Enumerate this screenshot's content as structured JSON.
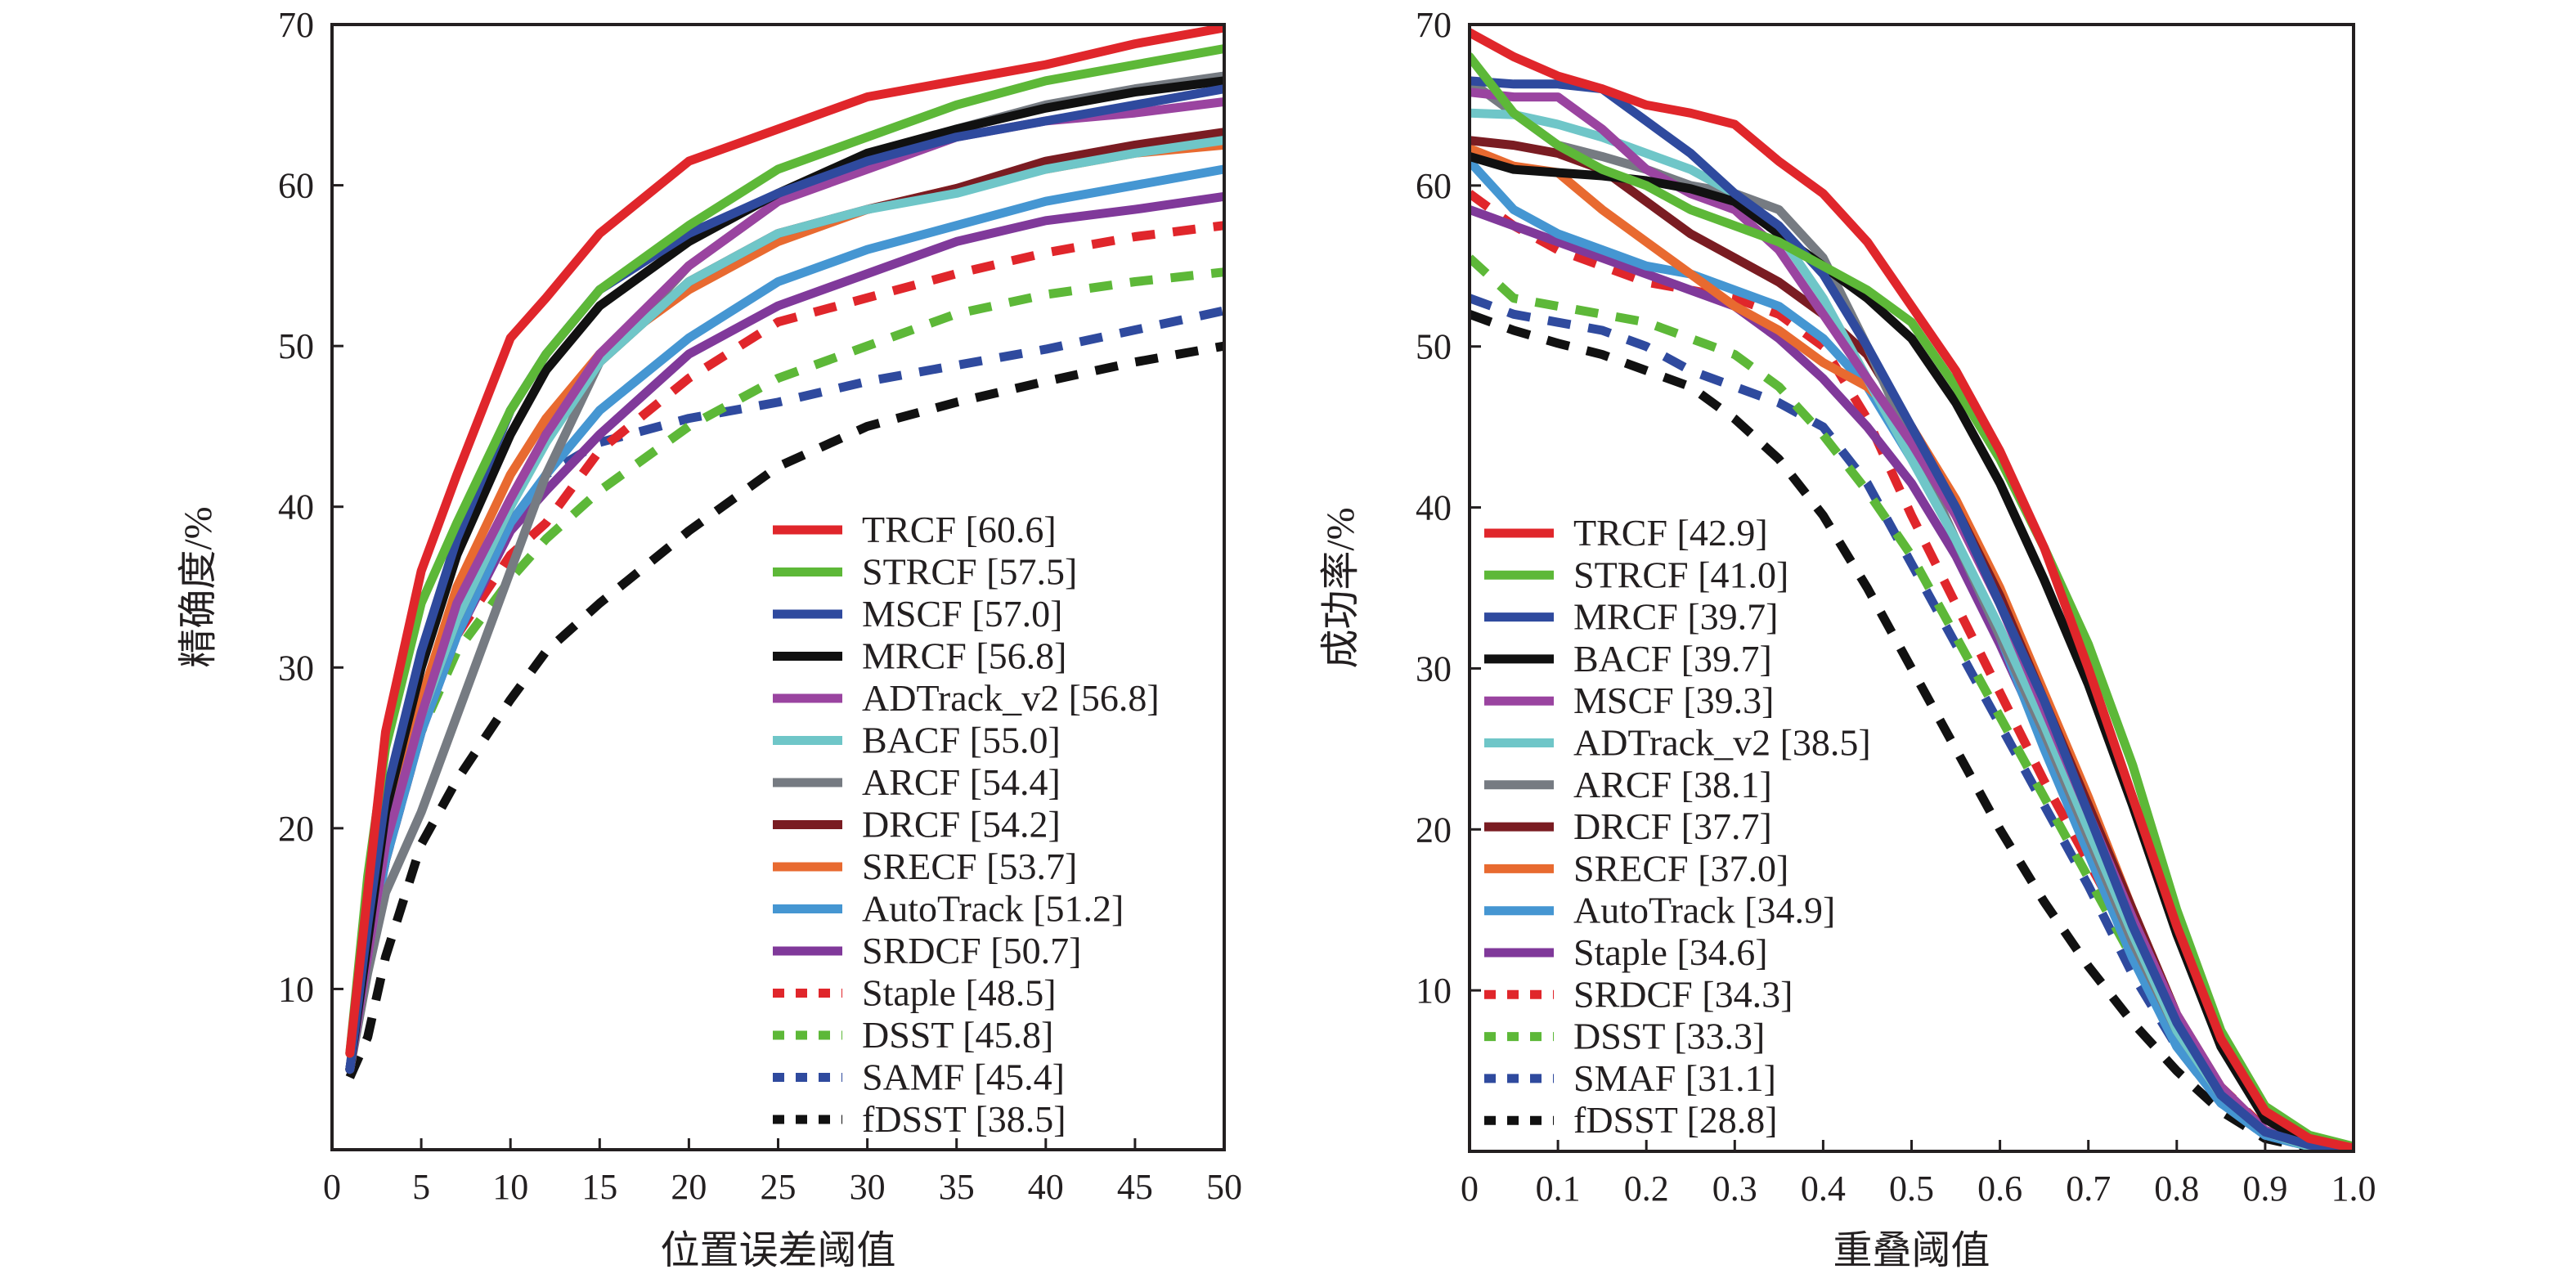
{
  "chart_data": [
    {
      "type": "line",
      "title": "",
      "xlabel": "位置误差阈值",
      "ylabel": "精确度/%",
      "xlim": [
        0,
        50
      ],
      "ylim": [
        0,
        70
      ],
      "xticks": [
        0,
        5,
        10,
        15,
        20,
        25,
        30,
        35,
        40,
        45,
        50
      ],
      "xtick_labels": [
        "0",
        "5",
        "10",
        "15",
        "20",
        "25",
        "30",
        "35",
        "40",
        "45",
        "50"
      ],
      "yticks": [
        10,
        20,
        30,
        40,
        50,
        60,
        70
      ],
      "ytick_labels": [
        "10",
        "20",
        "30",
        "40",
        "50",
        "60",
        "70"
      ],
      "grid": false,
      "legend_position": "bottom-right",
      "x": [
        1,
        2,
        3,
        5,
        7,
        10,
        12,
        15,
        20,
        25,
        30,
        35,
        40,
        45,
        50
      ],
      "series": [
        {
          "name": "TRCF [60.6]",
          "color": "#e0262b",
          "dash": "solid",
          "values": [
            6,
            16,
            26,
            36,
            42,
            50.5,
            53,
            57,
            61.5,
            63.5,
            65.5,
            66.5,
            67.5,
            68.8,
            69.8
          ]
        },
        {
          "name": "STRCF [57.5]",
          "color": "#5db838",
          "dash": "solid",
          "values": [
            6,
            17,
            25,
            34,
            39,
            46,
            49.5,
            53.5,
            57.5,
            61,
            63,
            65,
            66.5,
            67.5,
            68.5
          ]
        },
        {
          "name": "MSCF [57.0]",
          "color": "#2f4a9e",
          "dash": "solid",
          "values": [
            5,
            14,
            22,
            31,
            38,
            46,
            49.5,
            53.5,
            57,
            59.5,
            61.5,
            63,
            64,
            65,
            66
          ]
        },
        {
          "name": "MRCF [56.8]",
          "color": "#111111",
          "dash": "solid",
          "values": [
            5,
            13,
            21,
            30,
            37,
            44.5,
            48.5,
            52.5,
            56.5,
            59.5,
            62,
            63.5,
            64.8,
            65.8,
            66.5
          ]
        },
        {
          "name": "ADTrack_v2 [56.8]",
          "color": "#9a44a0",
          "dash": "solid",
          "values": [
            5,
            12,
            19,
            27,
            34,
            40.5,
            44.5,
            49.5,
            55,
            59,
            61,
            63,
            64,
            64.5,
            65.2
          ]
        },
        {
          "name": "BACF [55.0]",
          "color": "#6fc6c8",
          "dash": "solid",
          "values": [
            5,
            12,
            19,
            27,
            33,
            40,
            44,
            49,
            54,
            57,
            58.5,
            59.5,
            61,
            62,
            62.8
          ]
        },
        {
          "name": "ARCF [54.4]",
          "color": "#767b82",
          "dash": "solid",
          "values": [
            5,
            11,
            16,
            21,
            27,
            36,
            42,
            49,
            55,
            59,
            61.5,
            63.5,
            65,
            66,
            66.8
          ]
        },
        {
          "name": "DRCF [54.2]",
          "color": "#7a1c22",
          "dash": "solid",
          "values": [
            5,
            12,
            19,
            27,
            33,
            40,
            44.5,
            49,
            54,
            57,
            58.5,
            59.8,
            61.5,
            62.5,
            63.3
          ]
        },
        {
          "name": "SRECF [53.7]",
          "color": "#e86a30",
          "dash": "solid",
          "values": [
            5,
            12,
            20,
            28,
            35,
            42,
            45.5,
            49.5,
            53.5,
            56.5,
            58.5,
            59.8,
            61,
            62,
            62.5
          ]
        },
        {
          "name": "AutoTrack [51.2]",
          "color": "#4596d2",
          "dash": "solid",
          "values": [
            5,
            12,
            18,
            26,
            32,
            39,
            42,
            46,
            50.5,
            54,
            56,
            57.5,
            59,
            60,
            61
          ]
        },
        {
          "name": "SRDCF [50.7]",
          "color": "#80399a",
          "dash": "solid",
          "values": [
            5,
            12,
            18,
            26,
            32,
            38.5,
            41,
            44.5,
            49.5,
            52.5,
            54.5,
            56.5,
            57.8,
            58.5,
            59.3
          ]
        },
        {
          "name": "Staple [48.5]",
          "color": "#e0262b",
          "dash": "dashed",
          "values": [
            5,
            12,
            18,
            26,
            32,
            37,
            39,
            43.5,
            48,
            51.5,
            53,
            54.5,
            55.8,
            56.8,
            57.5
          ]
        },
        {
          "name": "DSST [45.8]",
          "color": "#5db838",
          "dash": "dashed",
          "values": [
            5,
            12,
            18,
            26,
            31,
            35.5,
            38,
            41,
            45,
            48,
            50,
            52,
            53.2,
            54,
            54.6
          ]
        },
        {
          "name": "SAMF [45.4]",
          "color": "#2f4a9e",
          "dash": "dashed",
          "values": [
            5,
            12,
            18,
            26,
            32,
            38.5,
            42,
            44,
            45.5,
            46.5,
            47.8,
            48.8,
            49.8,
            51,
            52.2
          ]
        },
        {
          "name": "fDSST [38.5]",
          "color": "#111111",
          "dash": "dashed",
          "values": [
            4.5,
            7,
            12,
            19,
            23,
            28,
            31,
            34,
            38.5,
            42.5,
            45,
            46.5,
            47.8,
            49,
            50
          ]
        }
      ]
    },
    {
      "type": "line",
      "title": "",
      "xlabel": "重叠阈值",
      "ylabel": "成功率/%",
      "xlim": [
        0,
        1.0
      ],
      "ylim": [
        0,
        70
      ],
      "xticks": [
        0,
        0.1,
        0.2,
        0.3,
        0.4,
        0.5,
        0.6,
        0.7,
        0.8,
        0.9,
        1.0
      ],
      "xtick_labels": [
        "0",
        "0.1",
        "0.2",
        "0.3",
        "0.4",
        "0.5",
        "0.6",
        "0.7",
        "0.8",
        "0.9",
        "1.0"
      ],
      "yticks": [
        10,
        20,
        30,
        40,
        50,
        60,
        70
      ],
      "ytick_labels": [
        "10",
        "20",
        "30",
        "40",
        "50",
        "60",
        "70"
      ],
      "grid": false,
      "legend_position": "bottom-left",
      "x": [
        0,
        0.05,
        0.1,
        0.15,
        0.2,
        0.25,
        0.3,
        0.35,
        0.4,
        0.45,
        0.5,
        0.55,
        0.6,
        0.65,
        0.7,
        0.75,
        0.8,
        0.85,
        0.9,
        0.95,
        1.0
      ],
      "series": [
        {
          "name": "TRCF [42.9]",
          "color": "#e0262b",
          "dash": "solid",
          "values": [
            69.5,
            68,
            66.8,
            66,
            65,
            64.5,
            63.8,
            61.5,
            59.5,
            56.5,
            52.5,
            48.5,
            43.5,
            37.5,
            30,
            22,
            14,
            7,
            2.5,
            0.8,
            0.2
          ]
        },
        {
          "name": "STRCF [41.0]",
          "color": "#5db838",
          "dash": "solid",
          "values": [
            68,
            64.5,
            62.5,
            61,
            60,
            58.5,
            57.5,
            56.5,
            55,
            53.5,
            51.5,
            47.5,
            43,
            37.5,
            31.5,
            24,
            15,
            7.5,
            2.8,
            1,
            0.3
          ]
        },
        {
          "name": "MRCF [39.7]",
          "color": "#2f4a9e",
          "dash": "solid",
          "values": [
            66.5,
            66.3,
            66.3,
            66,
            64,
            62,
            59.5,
            57.5,
            54.5,
            50,
            45,
            40,
            34,
            28,
            21,
            14,
            8,
            3.5,
            1.2,
            0.4,
            0.1
          ]
        },
        {
          "name": "BACF [39.7]",
          "color": "#111111",
          "dash": "solid",
          "values": [
            61.8,
            61,
            60.8,
            60.6,
            60.3,
            59.8,
            59,
            57,
            55,
            53,
            50.5,
            46.5,
            41.5,
            35.5,
            29,
            21.5,
            13.5,
            6.5,
            2,
            0.5,
            0.1
          ]
        },
        {
          "name": "MSCF [39.3]",
          "color": "#9a44a0",
          "dash": "solid",
          "values": [
            65.8,
            65.5,
            65.5,
            63.5,
            61,
            59.5,
            58.5,
            56,
            52,
            48,
            44,
            39.5,
            34,
            27.5,
            21,
            14.5,
            8.5,
            4,
            1.3,
            0.4,
            0.1
          ]
        },
        {
          "name": "ADTrack_v2 [38.5]",
          "color": "#6fc6c8",
          "dash": "solid",
          "values": [
            64.5,
            64.4,
            63.8,
            63,
            62,
            61,
            59.5,
            57,
            53,
            48,
            43,
            38,
            32.5,
            26.5,
            20,
            13.5,
            7.5,
            3.5,
            1.2,
            0.3,
            0.1
          ]
        },
        {
          "name": "ARCF [38.1]",
          "color": "#767b82",
          "dash": "solid",
          "values": [
            66.5,
            64.5,
            62.5,
            61.8,
            61,
            60,
            59.5,
            58.5,
            55.5,
            50,
            44,
            38,
            32,
            26,
            19.5,
            13,
            7.5,
            3.5,
            1.2,
            0.3,
            0.1
          ]
        },
        {
          "name": "DRCF [37.7]",
          "color": "#7a1c22",
          "dash": "solid",
          "values": [
            62.8,
            62.5,
            62,
            61,
            59,
            57,
            55.5,
            54,
            52,
            49.5,
            45,
            40,
            34.5,
            28,
            21.5,
            15,
            8.5,
            4,
            1.3,
            0.4,
            0.1
          ]
        },
        {
          "name": "SRECF [37.0]",
          "color": "#e86a30",
          "dash": "solid",
          "values": [
            62.3,
            61.2,
            60.8,
            58.5,
            56.5,
            54.5,
            52.5,
            51,
            49,
            47.5,
            45,
            40.5,
            35,
            28.5,
            22,
            15,
            8.5,
            4,
            1.3,
            0.4,
            0.1
          ]
        },
        {
          "name": "AutoTrack [34.9]",
          "color": "#4596d2",
          "dash": "solid",
          "values": [
            61.5,
            58.5,
            57,
            56,
            55,
            54.5,
            53.5,
            52.5,
            50.5,
            47.5,
            43,
            38,
            32,
            25,
            18.5,
            12,
            6.5,
            3,
            1,
            0.3,
            0.1
          ]
        },
        {
          "name": "Staple [34.6]",
          "color": "#80399a",
          "dash": "solid",
          "values": [
            58.5,
            57.5,
            56.5,
            55.5,
            54.5,
            53.5,
            52.5,
            50.5,
            48,
            45,
            41.5,
            37,
            31.5,
            25.5,
            19,
            13,
            7.5,
            3.5,
            1.2,
            0.3,
            0.1
          ]
        },
        {
          "name": "SRDCF [34.3]",
          "color": "#e0262b",
          "dash": "dashed",
          "values": [
            59.5,
            57.5,
            56,
            55,
            54,
            53.5,
            53,
            52,
            50,
            45.5,
            39.5,
            34,
            28.5,
            23,
            18,
            13,
            8,
            4,
            1.4,
            0.4,
            0.1
          ]
        },
        {
          "name": "DSST [33.3]",
          "color": "#5db838",
          "dash": "dashed",
          "values": [
            55.5,
            53,
            52.5,
            52,
            51.5,
            50.5,
            49.5,
            47.5,
            44.5,
            41,
            37,
            32,
            27,
            22,
            17,
            12,
            7.5,
            3.5,
            1.2,
            0.3,
            0.1
          ]
        },
        {
          "name": "SMAF [31.1]",
          "color": "#2f4a9e",
          "dash": "dashed",
          "values": [
            53,
            52,
            51.5,
            51,
            50,
            48.5,
            47.5,
            46.5,
            45,
            41.5,
            36.5,
            31.5,
            26.5,
            21.5,
            16.5,
            11,
            6.5,
            3,
            1,
            0.3,
            0.1
          ]
        },
        {
          "name": "fDSST [28.8]",
          "color": "#111111",
          "dash": "dashed",
          "values": [
            52,
            51,
            50.2,
            49.5,
            48.5,
            47.5,
            45.5,
            43,
            39.5,
            35,
            30,
            25,
            20,
            15.5,
            11.5,
            8,
            5,
            2.5,
            0.8,
            0.2,
            0.05
          ]
        }
      ]
    }
  ]
}
